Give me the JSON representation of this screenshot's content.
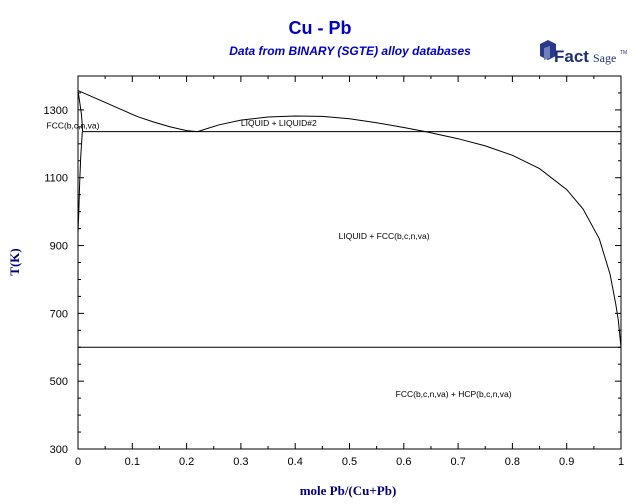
{
  "chart_data": {
    "type": "line",
    "title": "Cu - Pb",
    "subtitle": "Data from BINARY (SGTE) alloy databases",
    "xlabel": "mole Pb/(Cu+Pb)",
    "ylabel": "T(K)",
    "xlim": [
      0,
      1
    ],
    "ylim": [
      300,
      1400
    ],
    "xticks": [
      0,
      0.1,
      0.2,
      0.3,
      0.4,
      0.5,
      0.6,
      0.7,
      0.8,
      0.9,
      1
    ],
    "xtick_labels": [
      "0",
      "0.1",
      "0.2",
      "0.3",
      "0.4",
      "0.5",
      "0.6",
      "0.7",
      "0.8",
      "0.9",
      "1"
    ],
    "yticks": [
      300,
      500,
      700,
      900,
      1100,
      1300
    ],
    "ytick_labels": [
      "300",
      "500",
      "700",
      "900",
      "1100",
      "1300"
    ],
    "ytick_minor_step": 50,
    "xtick_minor_step": 0.05,
    "grid": false,
    "line_color": "#000000",
    "series": [
      {
        "x": [
          0.0,
          0.02,
          0.05,
          0.08,
          0.11,
          0.14,
          0.17,
          0.2,
          0.22
        ],
        "y": [
          1357,
          1343,
          1322,
          1301,
          1280,
          1264,
          1250,
          1239,
          1236
        ]
      },
      {
        "x": [
          0.0,
          0.003,
          0.006,
          0.008,
          0.0085
        ],
        "y": [
          1357,
          1325,
          1290,
          1255,
          1236
        ]
      },
      {
        "x": [
          0.0,
          0.0015,
          0.003,
          0.005,
          0.0075,
          0.008
        ],
        "y": [
          936,
          1000,
          1080,
          1160,
          1225,
          1236
        ]
      },
      {
        "x": [
          0.0085,
          1.0
        ],
        "y": [
          1236,
          1236
        ]
      },
      {
        "x": [
          0.22,
          0.26,
          0.3,
          0.35,
          0.4,
          0.45,
          0.5,
          0.55,
          0.6,
          0.64
        ],
        "y": [
          1236,
          1256,
          1270,
          1279,
          1282,
          1281,
          1274,
          1262,
          1248,
          1236
        ]
      },
      {
        "x": [
          0.64,
          0.7,
          0.75,
          0.8,
          0.85,
          0.9,
          0.93,
          0.96,
          0.98,
          0.99,
          0.995,
          1.0
        ],
        "y": [
          1236,
          1215,
          1194,
          1166,
          1127,
          1065,
          1008,
          920,
          815,
          730,
          680,
          600
        ]
      },
      {
        "x": [
          0.0,
          1.0
        ],
        "y": [
          600,
          600
        ]
      }
    ],
    "annotations": [
      {
        "text": "FCC(b,c,n,va)",
        "x": -0.058,
        "y": 1245
      },
      {
        "text": "LIQUID + LIQUID#2",
        "x": 0.3,
        "y": 1252
      },
      {
        "text": "LIQUID + FCC(b,c,n,va)",
        "x": 0.48,
        "y": 920
      },
      {
        "text": "FCC(b,c,n,va) + HCP(b,c,n,va)",
        "x": 0.585,
        "y": 453
      }
    ]
  },
  "logo": {
    "text": "Fact",
    "text2": "Sage",
    "mark": "TM"
  }
}
